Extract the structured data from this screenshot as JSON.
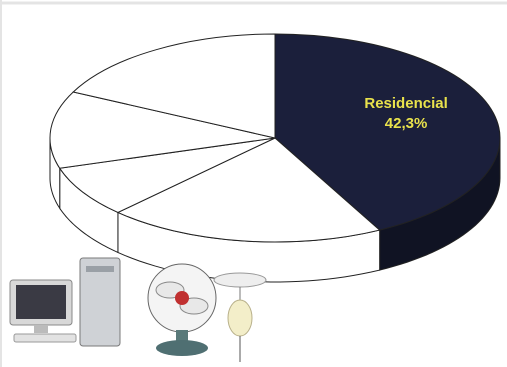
{
  "chart_data": {
    "type": "pie3d",
    "categories": [
      "Residencial",
      null,
      null,
      null,
      null
    ],
    "values": [
      42.3,
      20,
      8,
      12,
      17.7
    ],
    "value_labels": [
      "42,3%",
      null,
      null,
      null,
      null
    ],
    "colors": [
      "#1b1f3b",
      "#ffffff",
      "#ffffff",
      "#ffffff",
      "#ffffff"
    ],
    "label_color": "#e9e24c"
  }
}
